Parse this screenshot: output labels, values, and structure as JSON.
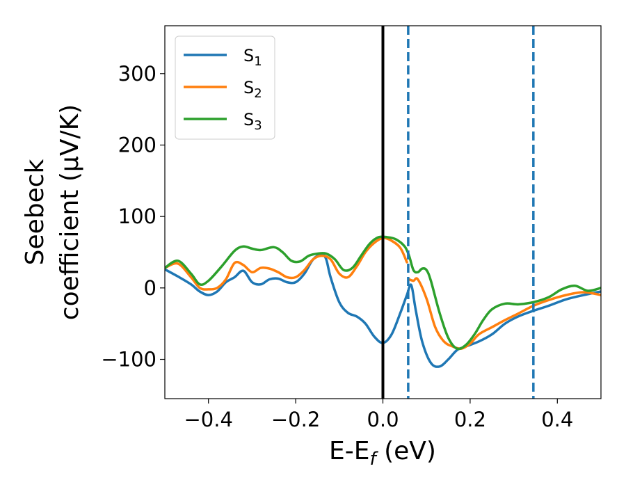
{
  "chart_data": {
    "type": "line",
    "xlabel": "E-E_f (eV)",
    "ylabel_line1": "Seebeck",
    "ylabel_line2": "coefficient  (μV/K)",
    "xlim": [
      -0.5,
      0.5
    ],
    "ylim": [
      -155,
      367
    ],
    "xticks": [
      -0.4,
      -0.2,
      0.0,
      0.2,
      0.4
    ],
    "xtick_labels": [
      "−0.4",
      "−0.2",
      "0.0",
      "0.2",
      "0.4"
    ],
    "yticks": [
      -100,
      0,
      100,
      200,
      300
    ],
    "ytick_labels": [
      "−100",
      "0",
      "100",
      "200",
      "300"
    ],
    "legend_position": "top-left",
    "grid": false,
    "vlines": [
      {
        "x": 0.0,
        "style": "solid",
        "color": "#000000"
      },
      {
        "x": 0.058,
        "style": "dashed",
        "color": "#1f77b4"
      },
      {
        "x": 0.345,
        "style": "dashed",
        "color": "#1f77b4"
      }
    ],
    "series": [
      {
        "name": "S_1",
        "color": "#1f77b4",
        "x": [
          -0.5,
          -0.47,
          -0.44,
          -0.42,
          -0.4,
          -0.38,
          -0.36,
          -0.34,
          -0.32,
          -0.3,
          -0.28,
          -0.26,
          -0.24,
          -0.22,
          -0.2,
          -0.18,
          -0.16,
          -0.14,
          -0.13,
          -0.12,
          -0.1,
          -0.08,
          -0.06,
          -0.04,
          -0.02,
          0.0,
          0.02,
          0.04,
          0.055,
          0.065,
          0.075,
          0.09,
          0.11,
          0.13,
          0.15,
          0.17,
          0.19,
          0.22,
          0.25,
          0.28,
          0.31,
          0.345,
          0.38,
          0.42,
          0.46,
          0.5
        ],
        "y": [
          26,
          16,
          5,
          -5,
          -10,
          -5,
          8,
          15,
          24,
          8,
          5,
          12,
          13,
          8,
          8,
          20,
          40,
          47,
          40,
          15,
          -20,
          -35,
          -40,
          -50,
          -68,
          -77,
          -65,
          -35,
          -10,
          4,
          -30,
          -75,
          -105,
          -110,
          -100,
          -87,
          -82,
          -75,
          -65,
          -50,
          -40,
          -32,
          -25,
          -16,
          -10,
          -5
        ]
      },
      {
        "name": "S_2",
        "color": "#ff7f0e",
        "x": [
          -0.5,
          -0.47,
          -0.44,
          -0.42,
          -0.4,
          -0.38,
          -0.36,
          -0.34,
          -0.32,
          -0.3,
          -0.28,
          -0.26,
          -0.24,
          -0.22,
          -0.2,
          -0.18,
          -0.16,
          -0.14,
          -0.12,
          -0.1,
          -0.08,
          -0.06,
          -0.04,
          -0.02,
          0.0,
          0.02,
          0.04,
          0.055
        ],
        "y": [
          28,
          34,
          15,
          0,
          -2,
          0,
          12,
          35,
          32,
          22,
          28,
          27,
          22,
          15,
          15,
          25,
          40,
          45,
          40,
          20,
          15,
          30,
          50,
          63,
          70,
          66,
          56,
          36
        ]
      },
      {
        "name": "S_2",
        "color": "#ff7f0e",
        "x": [
          0.06,
          0.07,
          0.08,
          0.1,
          0.12,
          0.14,
          0.16,
          0.18,
          0.2,
          0.22,
          0.25,
          0.28,
          0.31,
          0.345,
          0.38,
          0.42,
          0.46,
          0.5
        ],
        "y": [
          12,
          10,
          12,
          -15,
          -55,
          -75,
          -82,
          -85,
          -78,
          -65,
          -55,
          -45,
          -36,
          -25,
          -17,
          -10,
          -6,
          -10
        ]
      },
      {
        "name": "S_3",
        "color": "#2ca02c",
        "x": [
          -0.5,
          -0.47,
          -0.44,
          -0.42,
          -0.4,
          -0.37,
          -0.34,
          -0.32,
          -0.3,
          -0.28,
          -0.25,
          -0.23,
          -0.21,
          -0.19,
          -0.17,
          -0.15,
          -0.13,
          -0.11,
          -0.09,
          -0.07,
          -0.05,
          -0.03,
          -0.01,
          0.01,
          0.03,
          0.05,
          0.06,
          0.07,
          0.08,
          0.09,
          0.1,
          0.11,
          0.13,
          0.15,
          0.17,
          0.19,
          0.21,
          0.23,
          0.25,
          0.28,
          0.31,
          0.345,
          0.38,
          0.41,
          0.44,
          0.47,
          0.5
        ],
        "y": [
          28,
          38,
          20,
          5,
          10,
          30,
          52,
          58,
          55,
          53,
          57,
          50,
          38,
          37,
          45,
          48,
          48,
          40,
          25,
          28,
          45,
          62,
          71,
          71,
          68,
          58,
          45,
          25,
          22,
          27,
          25,
          10,
          -35,
          -70,
          -85,
          -80,
          -65,
          -45,
          -30,
          -22,
          -23,
          -20,
          -13,
          -2,
          3,
          -4,
          0
        ]
      }
    ]
  }
}
